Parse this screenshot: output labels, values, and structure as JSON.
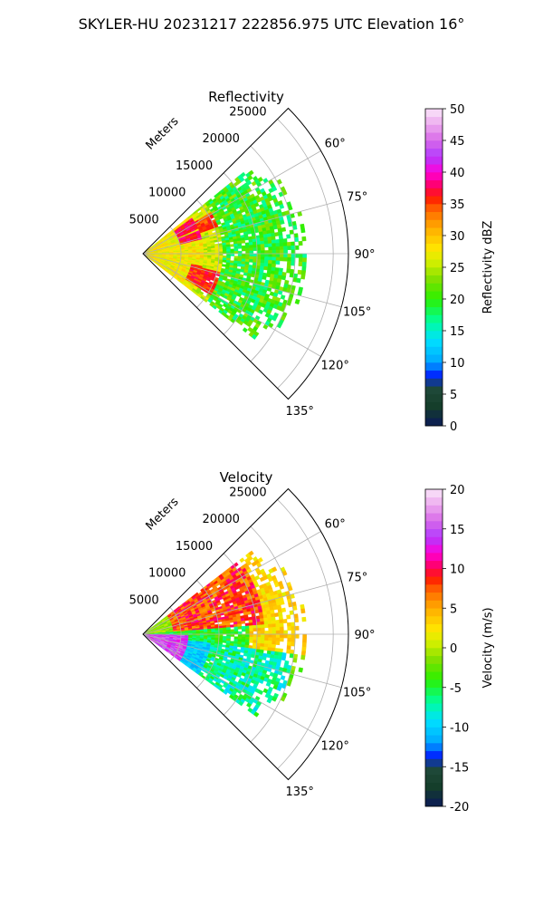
{
  "figure": {
    "suptitle": "SKYLER-HU  20231217  222856.975 UTC Elevation 16°"
  },
  "chart_data": [
    {
      "type": "heatmap",
      "title": "Reflectivity",
      "radial_axis_label": "Meters",
      "radial_ticks": [
        "5000",
        "10000",
        "15000",
        "20000",
        "25000"
      ],
      "range_max": 27000,
      "angle_ticks": [
        "60°",
        "75°",
        "90°",
        "105°",
        "120°",
        "135°"
      ],
      "angle_range_deg": [
        45,
        135
      ],
      "colorbar": {
        "label": "Reflectivity dBZ",
        "vmin": 0,
        "vmax": 50,
        "ticks": [
          "0",
          "5",
          "10",
          "15",
          "20",
          "25",
          "30",
          "35",
          "40",
          "45",
          "50"
        ]
      },
      "grid": true,
      "field_summary": [
        {
          "azimuth_deg": [
            50,
            130
          ],
          "range_m": [
            0,
            8000
          ],
          "value": 26
        },
        {
          "azimuth_deg": [
            60,
            72
          ],
          "range_m": [
            8000,
            10000
          ],
          "value": 34
        },
        {
          "azimuth_deg": [
            105,
            120
          ],
          "range_m": [
            7000,
            10000
          ],
          "value": 35
        },
        {
          "azimuth_deg": [
            55,
            125
          ],
          "range_m": [
            10000,
            23000
          ],
          "value": 20
        }
      ]
    },
    {
      "type": "heatmap",
      "title": "Velocity",
      "radial_axis_label": "Meters",
      "radial_ticks": [
        "5000",
        "10000",
        "15000",
        "20000",
        "25000"
      ],
      "range_max": 27000,
      "angle_ticks": [
        "60°",
        "75°",
        "90°",
        "105°",
        "120°",
        "135°"
      ],
      "angle_range_deg": [
        45,
        135
      ],
      "colorbar": {
        "label": "Velocity (m/s)",
        "vmin": -20,
        "vmax": 20,
        "ticks": [
          "-20",
          "-15",
          "-10",
          "-5",
          "0",
          "5",
          "10",
          "15",
          "20"
        ]
      },
      "grid": true,
      "field_summary": [
        {
          "azimuth_deg": [
            90,
            125
          ],
          "range_m": [
            0,
            6000
          ],
          "value": 14
        },
        {
          "azimuth_deg": [
            50,
            85
          ],
          "range_m": [
            3000,
            16000
          ],
          "value": 7
        },
        {
          "azimuth_deg": [
            85,
            95
          ],
          "range_m": [
            0,
            12000
          ],
          "value": -6
        },
        {
          "azimuth_deg": [
            95,
            125
          ],
          "range_m": [
            5000,
            20000
          ],
          "value": -11
        },
        {
          "azimuth_deg": [
            60,
            95
          ],
          "range_m": [
            15000,
            22000
          ],
          "value": 2
        }
      ]
    }
  ]
}
